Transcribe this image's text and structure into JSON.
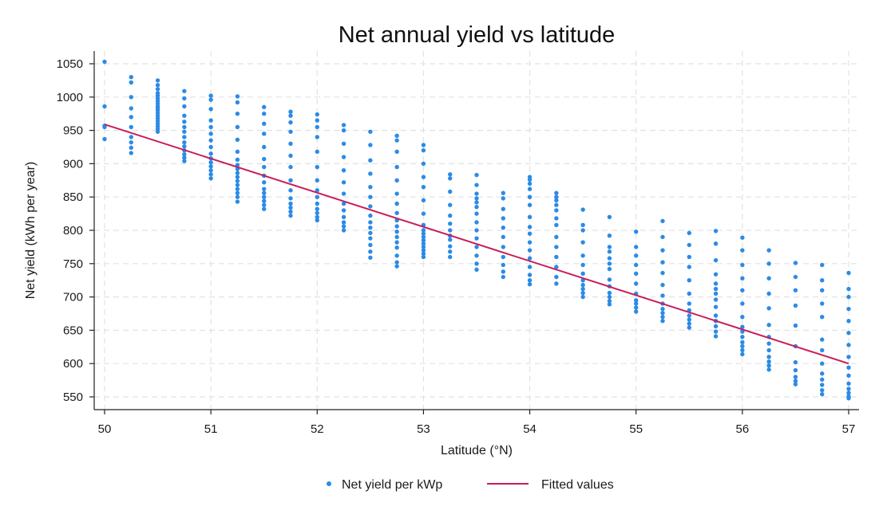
{
  "chart_data": {
    "type": "scatter",
    "title": "Net annual yield vs latitude",
    "xlabel": "Latitude (°N)",
    "ylabel": "Net yield (kWh per year)",
    "xlim": [
      50,
      57
    ],
    "ylim": [
      550,
      1050
    ],
    "x_ticks": [
      50,
      51,
      52,
      53,
      54,
      55,
      56,
      57
    ],
    "y_ticks": [
      550,
      600,
      650,
      700,
      750,
      800,
      850,
      900,
      950,
      1000,
      1050
    ],
    "grid": true,
    "legend_position": "bottom",
    "colors": {
      "scatter": "#2b8be6",
      "fit": "#c81e5a",
      "grid": "#e2e2e2",
      "axis": "#222222"
    },
    "series": [
      {
        "name": "Net yield per kWp",
        "kind": "scatter",
        "columns": [
          {
            "x": 50.0,
            "y": [
              1053,
              986,
              957,
              955,
              937
            ]
          },
          {
            "x": 50.25,
            "y": [
              1030,
              1022,
              1000,
              983,
              970,
              955,
              940,
              932,
              924,
              916
            ]
          },
          {
            "x": 50.5,
            "y": [
              1025,
              1018,
              1012,
              1006,
              1002,
              998,
              994,
              990,
              986,
              983,
              980,
              976,
              972,
              968,
              964,
              960,
              956,
              952,
              948
            ]
          },
          {
            "x": 50.75,
            "y": [
              1009,
              998,
              986,
              972,
              963,
              955,
              948,
              940,
              932,
              926,
              920,
              914,
              909,
              904
            ]
          },
          {
            "x": 51.0,
            "y": [
              1002,
              996,
              982,
              965,
              955,
              945,
              935,
              925,
              915,
              908,
              902,
              896,
              890,
              884,
              878
            ]
          },
          {
            "x": 51.25,
            "y": [
              1001,
              992,
              975,
              955,
              936,
              918,
              906,
              898,
              892,
              886,
              880,
              874,
              868,
              862,
              856,
              850,
              843
            ]
          },
          {
            "x": 51.5,
            "y": [
              985,
              975,
              960,
              945,
              925,
              907,
              895,
              882,
              872,
              862,
              856,
              850,
              844,
              838,
              832
            ]
          },
          {
            "x": 51.75,
            "y": [
              978,
              972,
              962,
              948,
              930,
              912,
              895,
              875,
              860,
              848,
              840,
              834,
              828,
              822
            ]
          },
          {
            "x": 52.0,
            "y": [
              974,
              965,
              955,
              940,
              918,
              895,
              875,
              860,
              850,
              840,
              832,
              826,
              820,
              815
            ]
          },
          {
            "x": 52.25,
            "y": [
              958,
              950,
              930,
              910,
              890,
              872,
              855,
              840,
              830,
              820,
              812,
              806,
              800
            ]
          },
          {
            "x": 52.5,
            "y": [
              948,
              928,
              905,
              885,
              865,
              850,
              836,
              822,
              812,
              804,
              796,
              788,
              778,
              768,
              759
            ]
          },
          {
            "x": 52.75,
            "y": [
              942,
              935,
              918,
              895,
              875,
              855,
              840,
              826,
              815,
              806,
              798,
              790,
              782,
              774,
              762,
              752,
              746
            ]
          },
          {
            "x": 53.0,
            "y": [
              928,
              920,
              900,
              880,
              865,
              845,
              825,
              808,
              800,
              795,
              790,
              785,
              780,
              775,
              770,
              765,
              760
            ]
          },
          {
            "x": 53.25,
            "y": [
              884,
              878,
              858,
              838,
              822,
              810,
              800,
              792,
              786,
              776,
              768,
              760
            ]
          },
          {
            "x": 53.5,
            "y": [
              883,
              868,
              855,
              848,
              842,
              835,
              825,
              812,
              800,
              788,
              775,
              762,
              750,
              741
            ]
          },
          {
            "x": 53.75,
            "y": [
              856,
              848,
              832,
              818,
              804,
              790,
              775,
              760,
              748,
              738,
              730
            ]
          },
          {
            "x": 54.0,
            "y": [
              880,
              876,
              870,
              862,
              850,
              838,
              820,
              805,
              795,
              782,
              770,
              758,
              745,
              733,
              725,
              719
            ]
          },
          {
            "x": 54.25,
            "y": [
              856,
              850,
              845,
              838,
              830,
              818,
              808,
              790,
              775,
              760,
              745,
              730,
              720
            ]
          },
          {
            "x": 54.5,
            "y": [
              831,
              808,
              800,
              782,
              762,
              748,
              735,
              725,
              718,
              712,
              706,
              700
            ]
          },
          {
            "x": 54.75,
            "y": [
              820,
              792,
              775,
              768,
              758,
              750,
              742,
              726,
              716,
              706,
              700,
              694,
              689
            ]
          },
          {
            "x": 55.0,
            "y": [
              798,
              775,
              762,
              748,
              735,
              720,
              705,
              695,
              690,
              684,
              678
            ]
          },
          {
            "x": 55.25,
            "y": [
              814,
              790,
              770,
              752,
              736,
              718,
              702,
              690,
              682,
              676,
              670,
              664
            ]
          },
          {
            "x": 55.5,
            "y": [
              796,
              778,
              760,
              745,
              725,
              705,
              690,
              680,
              672,
              666,
              660,
              654
            ]
          },
          {
            "x": 55.75,
            "y": [
              799,
              780,
              755,
              734,
              720,
              712,
              705,
              696,
              685,
              672,
              664,
              656,
              648,
              641
            ]
          },
          {
            "x": 56.0,
            "y": [
              789,
              770,
              748,
              728,
              710,
              690,
              670,
              655,
              648,
              640,
              632,
              626,
              620,
              614
            ]
          },
          {
            "x": 56.25,
            "y": [
              770,
              750,
              728,
              705,
              683,
              658,
              640,
              630,
              620,
              610,
              603,
              597,
              591
            ]
          },
          {
            "x": 56.5,
            "y": [
              751,
              730,
              710,
              687,
              657,
              626,
              602,
              590,
              580,
              574,
              569
            ]
          },
          {
            "x": 56.75,
            "y": [
              748,
              725,
              710,
              690,
              670,
              636,
              620,
              600,
              585,
              576,
              568,
              560,
              554
            ]
          },
          {
            "x": 57.0,
            "y": [
              736,
              712,
              700,
              682,
              664,
              646,
              628,
              610,
              594,
              582,
              570,
              562,
              556,
              551,
              548
            ]
          }
        ]
      },
      {
        "name": "Fitted values",
        "kind": "line",
        "x": [
          50,
          57
        ],
        "y": [
          959,
          600
        ]
      }
    ]
  }
}
